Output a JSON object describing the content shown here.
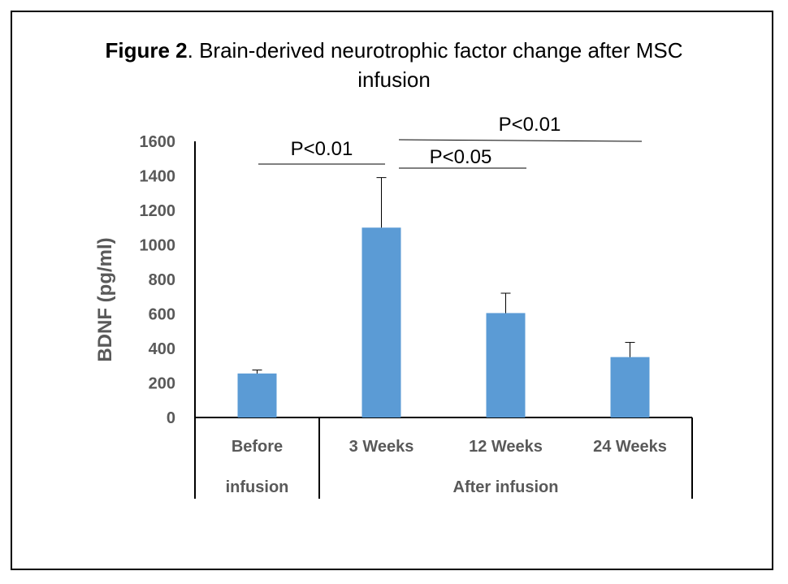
{
  "figure": {
    "label": "Figure 2",
    "title_rest": ". Brain-derived neurotrophic factor change after MSC",
    "title_line2": "infusion"
  },
  "chart_data": {
    "type": "bar",
    "categories": [
      "Before infusion",
      "3 Weeks",
      "12 Weeks",
      "24 Weeks"
    ],
    "category_lines": [
      [
        "Before",
        "infusion"
      ],
      [
        "3 Weeks"
      ],
      [
        "12 Weeks"
      ],
      [
        "24 Weeks"
      ]
    ],
    "group_label": "After infusion",
    "values": [
      255,
      1100,
      605,
      350
    ],
    "error_upper": [
      20,
      290,
      115,
      85
    ],
    "ylabel": "BDNF (pg/ml)",
    "ylim": [
      0,
      1600
    ],
    "yticks": [
      0,
      200,
      400,
      600,
      800,
      1000,
      1200,
      1400,
      1600
    ],
    "bar_color": "#5B9BD5",
    "grid": false,
    "significance": [
      {
        "label": "P<0.01",
        "from": "Before infusion",
        "to": "3 Weeks"
      },
      {
        "label": "P<0.05",
        "from": "3 Weeks",
        "to": "12 Weeks"
      },
      {
        "label": "P<0.01",
        "from": "3 Weeks",
        "to": "24 Weeks"
      }
    ]
  }
}
